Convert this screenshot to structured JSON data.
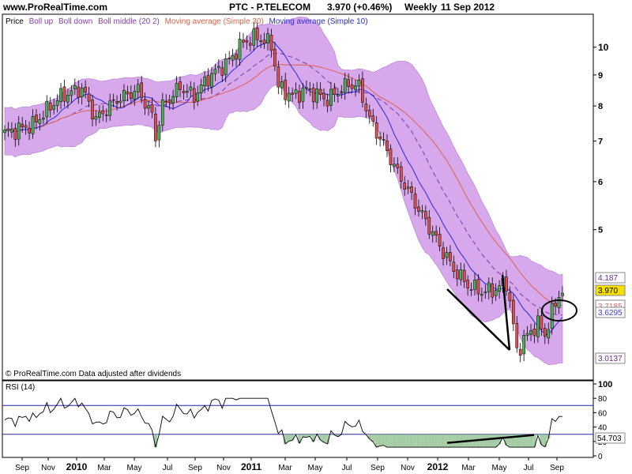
{
  "header": {
    "site": "www.ProRealTime.com",
    "symbol": "PTC - P.TELECOM",
    "price": "3.970 (+0.46%)",
    "period": "Weekly",
    "date": "11 Sep 2012"
  },
  "legend": {
    "price": "Price",
    "boll_up": "Boll up",
    "boll_down": "Boll down",
    "boll_middle": "Boll middle (20 2)",
    "ma30": "Moving average (Simple 30)",
    "ma10": "Moving average (Simple 10)"
  },
  "footer_note": "© ProRealTime.com  Data adjusted after dividends",
  "rsi_label": "RSI (14)",
  "price_badges": {
    "upper": "4.187",
    "last": "3.970",
    "ma_hidden": "3.7185",
    "middle": "3.6295",
    "lower": "3.0137"
  },
  "rsi_badge": "54.703",
  "colors": {
    "band_fill": "#d7a8ec",
    "band_edge": "#b07ad0",
    "ma30": "#e0604a",
    "ma10": "#2a2ad8",
    "up_candle": "#4caf50",
    "down_candle": "#d95050",
    "rsi_line": "#000000",
    "rsi_level": "#2222aa",
    "rsi_fill": "#8fbf8f",
    "last_badge": "#f7e000"
  },
  "chart_data": [
    {
      "type": "candlestick",
      "title": "PTC - P.TELECOM",
      "y_scale": "log",
      "ylim": [
        2.85,
        11.2
      ],
      "y_ticks": [
        10,
        9,
        8,
        7,
        6,
        5
      ],
      "x_ticks": [
        "Sep",
        "Nov",
        "2010",
        "Mar",
        "May",
        "Jul",
        "Sep",
        "Nov",
        "2011",
        "Mar",
        "May",
        "Jul",
        "Sep",
        "Nov",
        "2012",
        "Mar",
        "May",
        "Jul",
        "Sep"
      ],
      "series": [
        {
          "name": "Price",
          "date": "11 Sep 2012",
          "value": 3.97
        },
        {
          "name": "Boll up",
          "value": 4.187
        },
        {
          "name": "Boll middle (20 2)",
          "value": 3.6295
        },
        {
          "name": "Boll down",
          "value": 3.0137
        },
        {
          "name": "Moving average (Simple 30)",
          "value": 3.7185
        },
        {
          "name": "Moving average (Simple 10)"
        }
      ]
    },
    {
      "type": "line",
      "title": "RSI (14)",
      "ylim": [
        0,
        100
      ],
      "y_ticks": [
        100,
        80,
        60,
        40,
        20,
        0
      ],
      "levels": [
        70,
        30
      ],
      "series": [
        {
          "name": "RSI (14)",
          "value": 54.703
        }
      ]
    }
  ]
}
